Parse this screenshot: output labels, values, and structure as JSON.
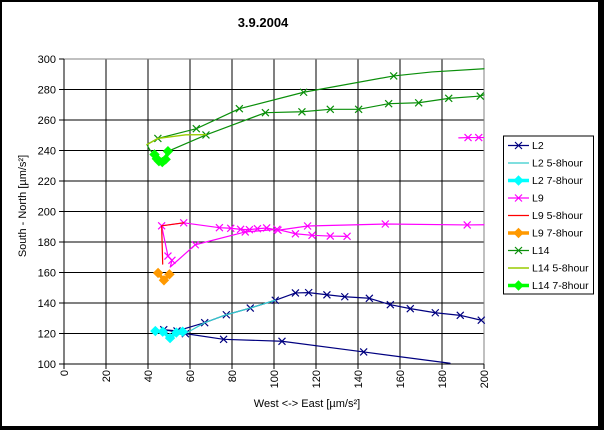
{
  "title": "3.9.2004",
  "axes": {
    "x": {
      "label": "West <-> East [µm/s²]",
      "ticks": [
        0,
        20,
        40,
        60,
        80,
        100,
        120,
        140,
        160,
        180,
        200
      ]
    },
    "y": {
      "label": "South - North  [µm/s²]",
      "ticks": [
        100,
        120,
        140,
        160,
        180,
        200,
        220,
        240,
        260,
        280,
        300
      ]
    }
  },
  "legend": {
    "items": [
      "L2",
      "L2 5-8hour",
      "L2 7-8hour",
      "L9",
      "L9 5-8hour",
      "L9 7-8hour",
      "L14",
      "L14 5-8hour",
      "L14 7-8hour"
    ]
  },
  "chart_data": {
    "type": "line",
    "title": "3.9.2004",
    "xlabel": "West <-> East [µm/s²]",
    "ylabel": "South - North [µm/s²]",
    "xlim": [
      0,
      200
    ],
    "ylim": [
      100,
      300
    ],
    "grid": true,
    "legend_position": "right",
    "series": [
      {
        "name": "L2",
        "color": "#000080",
        "width": 1.2,
        "marker": "x",
        "paths": [
          [
            [
              183.8,
              100.5
            ],
            [
              142.7,
              107.9
            ],
            [
              103.8,
              114.9
            ],
            [
              76,
              116.2
            ],
            [
              57.8,
              119.9
            ],
            [
              47.5,
              122.5
            ],
            [
              53.8,
              121.7
            ],
            [
              67,
              127.1
            ],
            [
              77.3,
              132.3
            ],
            [
              88.7,
              136.7
            ],
            [
              100.6,
              141.8
            ],
            [
              110.2,
              146.6
            ],
            [
              116.5,
              146.8
            ],
            [
              125.2,
              145.4
            ],
            [
              133.7,
              144.1
            ],
            [
              145.4,
              143.1
            ],
            [
              155.4,
              138.9
            ],
            [
              164.9,
              136.3
            ],
            [
              176.8,
              133.6
            ],
            [
              188.7,
              131.9
            ],
            [
              198.7,
              128.7
            ]
          ]
        ],
        "marker_points": [
          [
            142.7,
            107.9
          ],
          [
            103.8,
            114.9
          ],
          [
            76,
            116.2
          ],
          [
            57.8,
            119.9
          ],
          [
            47.5,
            122.5
          ],
          [
            53.8,
            121.7
          ],
          [
            67,
            127.1
          ],
          [
            77.3,
            132.3
          ],
          [
            88.7,
            136.7
          ],
          [
            100.6,
            141.8
          ],
          [
            110.2,
            146.6
          ],
          [
            116.5,
            146.8
          ],
          [
            125.2,
            145.4
          ],
          [
            133.7,
            144.1
          ],
          [
            145.4,
            143.1
          ],
          [
            155.4,
            138.9
          ],
          [
            164.9,
            136.3
          ],
          [
            176.8,
            133.6
          ],
          [
            188.7,
            131.9
          ],
          [
            198.7,
            128.7
          ]
        ]
      },
      {
        "name": "L2 5-8hour",
        "color": "#33CCCC",
        "width": 1.2,
        "marker": "none",
        "paths": [
          [
            [
              57.8,
              119.9
            ],
            [
              67,
              127.1
            ],
            [
              77.3,
              132.3
            ],
            [
              88.7,
              136.7
            ],
            [
              100.6,
              141.8
            ]
          ]
        ],
        "marker_points": []
      },
      {
        "name": "L2 7-8hour",
        "color": "#00FFFF",
        "width": 3.5,
        "marker": "diamond",
        "paths": [
          [
            [
              43.5,
              121.6
            ],
            [
              47,
              121.2
            ],
            [
              50.5,
              117
            ],
            [
              53.5,
              120.6
            ],
            [
              56.5,
              121.2
            ]
          ]
        ],
        "marker_points": [
          [
            43.5,
            121.6
          ],
          [
            47,
            121.2
          ],
          [
            50.5,
            117
          ],
          [
            53.5,
            120.6
          ],
          [
            56.5,
            121.2
          ]
        ]
      },
      {
        "name": "L9",
        "color": "#FF00FF",
        "width": 1.2,
        "marker": "x",
        "paths": [
          [
            [
              46.5,
              190.6
            ],
            [
              57,
              192.6
            ],
            [
              74,
              189.4
            ],
            [
              79.4,
              189
            ],
            [
              84.1,
              188.3
            ],
            [
              88.3,
              188.1
            ],
            [
              92.1,
              188.7
            ],
            [
              96.5,
              189.2
            ],
            [
              101.9,
              187.7
            ],
            [
              116,
              190.5
            ],
            [
              153,
              191.8
            ],
            [
              192,
              191.2
            ],
            [
              200,
              191.3
            ]
          ],
          [
            [
              46.5,
              190.6
            ],
            [
              49.5,
              170.8
            ],
            [
              51.4,
              168
            ],
            [
              50.6,
              163.6
            ],
            [
              62.5,
              178.2
            ],
            [
              86.3,
              186.6
            ],
            [
              101.4,
              188.3
            ],
            [
              110.2,
              185.4
            ],
            [
              118.1,
              184.4
            ],
            [
              126.8,
              183.9
            ],
            [
              134.8,
              183.7
            ]
          ],
          [
            [
              188,
              248.3
            ],
            [
              192.4,
              248.5
            ],
            [
              197.5,
              248.5
            ],
            [
              200,
              248.5
            ]
          ]
        ],
        "marker_points": [
          [
            46.5,
            190.6
          ],
          [
            57,
            192.6
          ],
          [
            74,
            189.4
          ],
          [
            79.4,
            189
          ],
          [
            84.1,
            188.3
          ],
          [
            88.3,
            188.1
          ],
          [
            92.1,
            188.7
          ],
          [
            96.5,
            189.2
          ],
          [
            101.9,
            187.7
          ],
          [
            116,
            190.5
          ],
          [
            153,
            191.8
          ],
          [
            192,
            191.2
          ],
          [
            49.5,
            170.8
          ],
          [
            51.4,
            168
          ],
          [
            62.5,
            178.2
          ],
          [
            86.3,
            186.6
          ],
          [
            101.4,
            188.3
          ],
          [
            110.2,
            185.4
          ],
          [
            118.1,
            184.4
          ],
          [
            126.8,
            183.9
          ],
          [
            134.8,
            183.7
          ],
          [
            192.4,
            248.5
          ],
          [
            197.5,
            248.5
          ]
        ]
      },
      {
        "name": "L9 5-8hour",
        "color": "#FF0000",
        "width": 1.2,
        "marker": "none",
        "paths": [
          [
            [
              57,
              192.6
            ],
            [
              46.5,
              190.6
            ],
            [
              47,
              165.5
            ]
          ]
        ],
        "marker_points": []
      },
      {
        "name": "L9 7-8hour",
        "color": "#FF9900",
        "width": 3.5,
        "marker": "diamond",
        "paths": [
          [
            [
              44.8,
              159.7
            ],
            [
              47.6,
              154.9
            ],
            [
              50.2,
              158.8
            ]
          ]
        ],
        "marker_points": [
          [
            44.8,
            159.7
          ],
          [
            47.6,
            154.9
          ],
          [
            50.2,
            158.8
          ]
        ]
      },
      {
        "name": "L14",
        "color": "#0A8F0A",
        "width": 1.2,
        "marker": "x",
        "paths": [
          [
            [
              200,
              276.5
            ],
            [
              198.2,
              275.7
            ],
            [
              183.2,
              274.2
            ],
            [
              168.9,
              271.3
            ],
            [
              154.6,
              270.7
            ],
            [
              140.3,
              267
            ],
            [
              126.8,
              267
            ],
            [
              113.3,
              265.4
            ],
            [
              95.9,
              264.8
            ],
            [
              67.6,
              250.2
            ],
            [
              49.5,
              239.5
            ],
            [
              48.4,
              234.2
            ],
            [
              46.8,
              232.4
            ],
            [
              45.4,
              233
            ],
            [
              44.2,
              234.6
            ],
            [
              43.1,
              237.4
            ],
            [
              40.8,
              240.5
            ],
            [
              39.5,
              243.9
            ],
            [
              44.7,
              247.9
            ],
            [
              63,
              254.3
            ],
            [
              83.5,
              267.4
            ],
            [
              114.1,
              278.2
            ],
            [
              157,
              288.9
            ],
            [
              175.2,
              291.5
            ],
            [
              200,
              293.6
            ]
          ]
        ],
        "marker_points": [
          [
            198.2,
            275.7
          ],
          [
            183.2,
            274.2
          ],
          [
            168.9,
            271.3
          ],
          [
            154.6,
            270.7
          ],
          [
            140.3,
            267
          ],
          [
            126.8,
            267
          ],
          [
            113.3,
            265.4
          ],
          [
            95.9,
            264.8
          ],
          [
            67.6,
            250.2
          ],
          [
            44.7,
            247.9
          ],
          [
            63,
            254.3
          ],
          [
            83.5,
            267.4
          ],
          [
            114.1,
            278.2
          ],
          [
            157,
            288.9
          ]
        ]
      },
      {
        "name": "L14 5-8hour",
        "color": "#99CC00",
        "width": 1.4,
        "marker": "none",
        "paths": [
          [
            [
              39.5,
              243.9
            ],
            [
              44.7,
              247.9
            ],
            [
              58,
              250.3
            ],
            [
              67.6,
              250.4
            ]
          ]
        ],
        "marker_points": []
      },
      {
        "name": "L14 7-8hour",
        "color": "#00FF00",
        "width": 3.5,
        "marker": "diamond",
        "paths": [
          [
            [
              49.5,
              239.5
            ],
            [
              48.4,
              234.2
            ],
            [
              46.8,
              232.4
            ],
            [
              45.2,
              233
            ],
            [
              44.2,
              234.6
            ],
            [
              43.1,
              237.4
            ]
          ]
        ],
        "marker_points": [
          [
            49.5,
            239.5
          ],
          [
            48.4,
            234.2
          ],
          [
            46.8,
            232.4
          ],
          [
            45.2,
            233
          ],
          [
            44.2,
            234.6
          ],
          [
            43.1,
            237.4
          ]
        ]
      }
    ]
  }
}
